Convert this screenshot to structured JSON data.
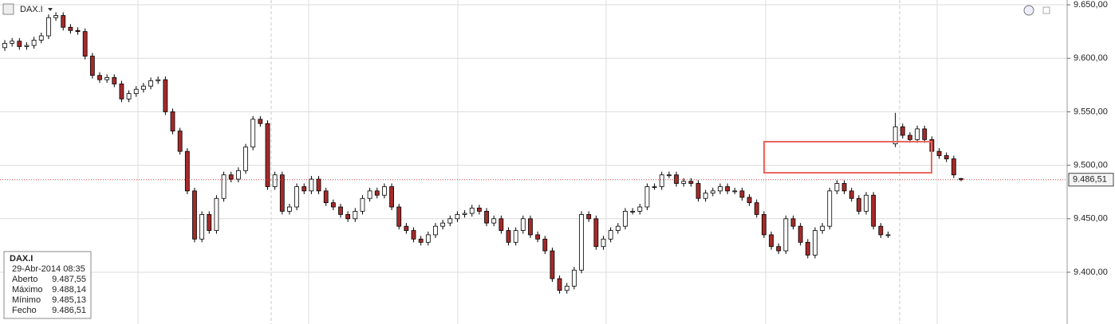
{
  "chart_data": {
    "type": "candlestick",
    "title": "DAX.I",
    "open": [
      9610,
      9614,
      9616,
      9611,
      9612,
      9617,
      9621,
      9638,
      9640,
      9629,
      9626,
      9625,
      9602,
      9584,
      9580,
      9582,
      9576,
      9562,
      9567,
      9571,
      9574,
      9579,
      9580,
      9550,
      9532,
      9513,
      9476,
      9431,
      9454,
      9439,
      9469,
      9491,
      9487,
      9495,
      9517,
      9543,
      9539,
      9480,
      9491,
      9457,
      9461,
      9480,
      9476,
      9487,
      9476,
      9465,
      9461,
      9454,
      9450,
      9457,
      9469,
      9476,
      9472,
      9480,
      9461,
      9443,
      9439,
      9431,
      9428,
      9435,
      9443,
      9446,
      9450,
      9454,
      9455,
      9460,
      9457,
      9446,
      9450,
      9439,
      9428,
      9439,
      9450,
      9435,
      9431,
      9420,
      9394,
      9383,
      9387,
      9402,
      9454,
      9450,
      9424,
      9431,
      9439,
      9443,
      9457,
      9457,
      9461,
      9480,
      9480,
      9491,
      9491,
      9483,
      9485,
      9483,
      9469,
      9474,
      9476,
      9480,
      9476,
      9476,
      9470,
      9465,
      9454,
      9435,
      9424,
      9420,
      9450,
      9443,
      9428,
      9416,
      9439,
      9443,
      9476,
      9483,
      9476,
      9469,
      9457,
      9472,
      9443,
      9435,
      9520,
      9536,
      9528,
      9524,
      9534,
      9524,
      9513,
      9509,
      9506,
      9487.55
    ],
    "high": [
      9617,
      9619,
      9619,
      9615,
      9620,
      9624,
      9641,
      9643,
      9643,
      9632,
      9629,
      9628,
      9605,
      9587,
      9585,
      9585,
      9579,
      9570,
      9574,
      9577,
      9582,
      9583,
      9583,
      9553,
      9535,
      9516,
      9479,
      9457,
      9457,
      9472,
      9494,
      9494,
      9498,
      9520,
      9546,
      9546,
      9542,
      9494,
      9494,
      9464,
      9483,
      9483,
      9490,
      9490,
      9479,
      9468,
      9464,
      9457,
      9460,
      9472,
      9479,
      9479,
      9483,
      9483,
      9464,
      9446,
      9442,
      9434,
      9438,
      9446,
      9449,
      9453,
      9457,
      9458,
      9463,
      9463,
      9460,
      9453,
      9453,
      9442,
      9442,
      9453,
      9453,
      9438,
      9434,
      9423,
      9397,
      9390,
      9405,
      9457,
      9457,
      9453,
      9434,
      9442,
      9446,
      9460,
      9460,
      9464,
      9483,
      9483,
      9494,
      9494,
      9494,
      9488,
      9488,
      9486,
      9477,
      9479,
      9483,
      9483,
      9479,
      9479,
      9473,
      9468,
      9457,
      9438,
      9427,
      9453,
      9453,
      9446,
      9431,
      9442,
      9446,
      9479,
      9486,
      9486,
      9479,
      9472,
      9475,
      9475,
      9446,
      9438,
      9549,
      9539,
      9531,
      9537,
      9537,
      9527,
      9516,
      9512,
      9509,
      9488.14
    ],
    "low": [
      9607,
      9611,
      9608,
      9608,
      9609,
      9614,
      9618,
      9635,
      9626,
      9623,
      9622,
      9599,
      9581,
      9577,
      9577,
      9573,
      9559,
      9559,
      9564,
      9568,
      9571,
      9576,
      9547,
      9529,
      9510,
      9473,
      9428,
      9428,
      9436,
      9436,
      9466,
      9484,
      9484,
      9492,
      9514,
      9536,
      9477,
      9477,
      9454,
      9454,
      9458,
      9473,
      9473,
      9473,
      9462,
      9458,
      9451,
      9447,
      9447,
      9454,
      9466,
      9469,
      9469,
      9458,
      9440,
      9436,
      9428,
      9425,
      9425,
      9432,
      9440,
      9443,
      9447,
      9451,
      9452,
      9454,
      9443,
      9443,
      9436,
      9425,
      9425,
      9436,
      9432,
      9428,
      9417,
      9391,
      9380,
      9380,
      9384,
      9399,
      9447,
      9421,
      9421,
      9428,
      9436,
      9440,
      9454,
      9454,
      9458,
      9477,
      9477,
      9488,
      9480,
      9480,
      9480,
      9466,
      9466,
      9471,
      9473,
      9473,
      9473,
      9467,
      9462,
      9451,
      9432,
      9421,
      9417,
      9417,
      9440,
      9425,
      9413,
      9413,
      9436,
      9440,
      9473,
      9473,
      9466,
      9454,
      9454,
      9440,
      9432,
      9432,
      9517,
      9525,
      9521,
      9521,
      9521,
      9510,
      9506,
      9503,
      9488,
      9485.13
    ],
    "close": [
      9614,
      9616,
      9611,
      9612,
      9617,
      9621,
      9638,
      9640,
      9629,
      9626,
      9625,
      9602,
      9584,
      9580,
      9582,
      9576,
      9562,
      9567,
      9571,
      9574,
      9579,
      9580,
      9550,
      9532,
      9513,
      9476,
      9431,
      9454,
      9439,
      9469,
      9491,
      9487,
      9495,
      9517,
      9543,
      9539,
      9480,
      9491,
      9457,
      9461,
      9480,
      9476,
      9487,
      9476,
      9465,
      9461,
      9454,
      9450,
      9457,
      9469,
      9476,
      9472,
      9480,
      9461,
      9443,
      9439,
      9431,
      9428,
      9435,
      9443,
      9446,
      9450,
      9454,
      9455,
      9460,
      9457,
      9446,
      9450,
      9439,
      9428,
      9439,
      9450,
      9435,
      9431,
      9420,
      9394,
      9383,
      9387,
      9402,
      9454,
      9450,
      9424,
      9431,
      9439,
      9443,
      9457,
      9457,
      9461,
      9480,
      9480,
      9491,
      9491,
      9483,
      9485,
      9483,
      9469,
      9474,
      9476,
      9480,
      9476,
      9476,
      9470,
      9465,
      9454,
      9435,
      9424,
      9420,
      9450,
      9443,
      9428,
      9416,
      9439,
      9443,
      9476,
      9483,
      9476,
      9469,
      9457,
      9472,
      9443,
      9435,
      9435,
      9536,
      9528,
      9524,
      9534,
      9524,
      9513,
      9509,
      9506,
      9491,
      9486.51
    ],
    "up_color": "#ffffff",
    "down_color": "#a52a2a",
    "ylim": [
      9351.6,
      9654.5
    ],
    "yticks": [
      {
        "value": 9400,
        "label": "9.400,00"
      },
      {
        "value": 9450,
        "label": "9.450,00"
      },
      {
        "value": 9500,
        "label": "9.500,00"
      },
      {
        "value": 9550,
        "label": "9.550,00"
      },
      {
        "value": 9600,
        "label": "9.600,00"
      },
      {
        "value": 9650,
        "label": "9.650,00"
      }
    ],
    "grid": true,
    "last_price": {
      "value": 9486.51,
      "label": "9.486,51"
    },
    "info": {
      "title": "DAX.I",
      "date": "29-Abr-2014 08:35",
      "rows": [
        {
          "label": "Aberto",
          "value": "9.487,55"
        },
        {
          "label": "Máximo",
          "value": "9.488,14"
        },
        {
          "label": "Mínimo",
          "value": "9.485,13"
        },
        {
          "label": "Fecho",
          "value": "9.486,51"
        }
      ]
    }
  }
}
